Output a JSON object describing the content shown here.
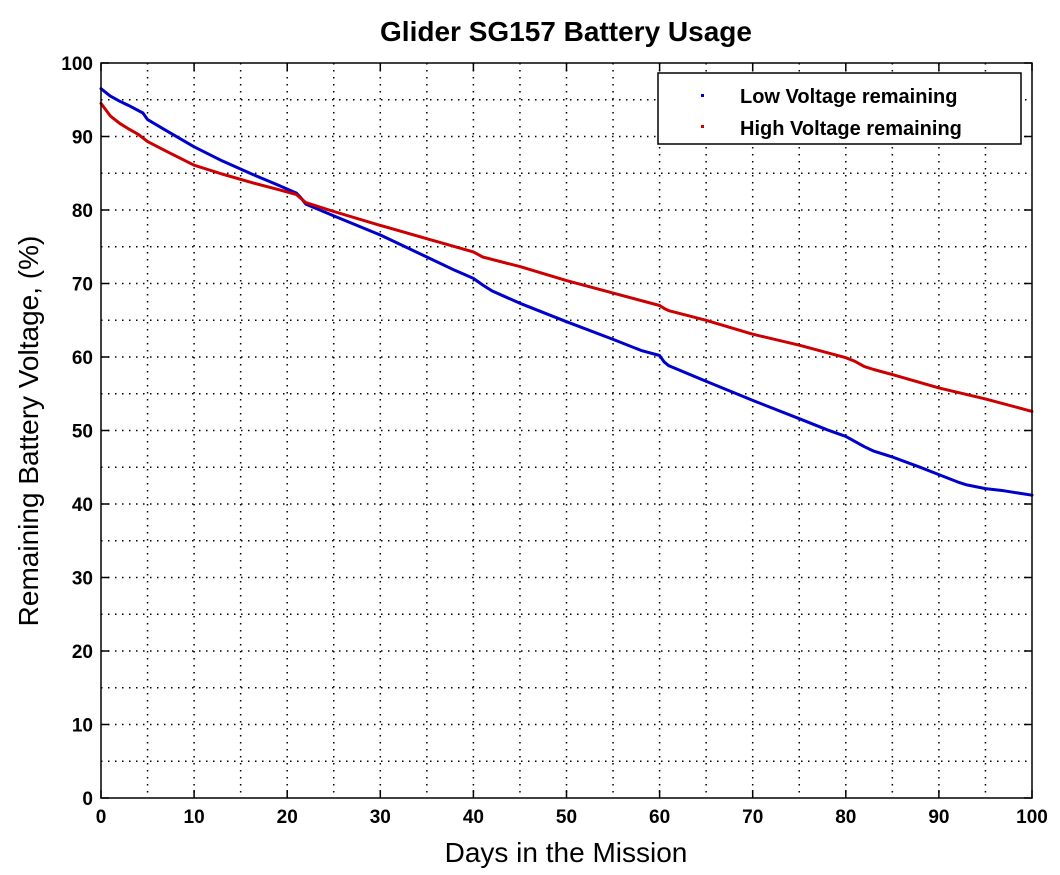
{
  "chart_data": {
    "type": "line",
    "title": "Glider SG157 Battery Usage",
    "xlabel": "Days in the Mission",
    "ylabel": "Remaining Battery Voltage, (%)",
    "xlim": [
      0,
      100
    ],
    "ylim": [
      0,
      100
    ],
    "xticks": [
      "0",
      "10",
      "20",
      "30",
      "40",
      "50",
      "60",
      "70",
      "80",
      "90",
      "100"
    ],
    "yticks": [
      "0",
      "10",
      "20",
      "30",
      "40",
      "50",
      "60",
      "70",
      "80",
      "90",
      "100"
    ],
    "grid": true,
    "legend_position": "top-right",
    "series": [
      {
        "name": "Low Voltage remaining",
        "color": "#0000cc",
        "x": [
          0,
          1,
          2,
          3,
          4.5,
          5,
          7,
          10,
          13,
          16,
          19,
          21,
          21.5,
          22,
          25,
          30,
          35,
          38,
          40,
          41,
          42,
          45,
          50,
          55,
          58,
          60,
          60.5,
          61,
          65,
          70,
          75,
          78,
          80,
          82,
          83,
          85,
          88,
          90,
          92,
          93,
          95,
          97,
          100
        ],
        "y": [
          96.5,
          95.5,
          94.8,
          94.2,
          93.2,
          92.3,
          90.8,
          88.6,
          86.7,
          85.0,
          83.4,
          82.3,
          81.6,
          80.8,
          79.2,
          76.6,
          73.6,
          71.8,
          70.7,
          69.8,
          69.0,
          67.3,
          64.8,
          62.4,
          60.9,
          60.2,
          59.3,
          58.8,
          56.7,
          54.1,
          51.6,
          50.1,
          49.2,
          47.8,
          47.2,
          46.4,
          45.0,
          44.0,
          43.0,
          42.6,
          42.1,
          41.8,
          41.2
        ]
      },
      {
        "name": "High Voltage remaining",
        "color": "#cc0000",
        "x": [
          0,
          1,
          2,
          3,
          4,
          5,
          7,
          10,
          13,
          16,
          19,
          21,
          22,
          25,
          30,
          35,
          40,
          41,
          45,
          50,
          55,
          60,
          60.5,
          61,
          65,
          70,
          75,
          80,
          81,
          82,
          83,
          85,
          90,
          95,
          100
        ],
        "y": [
          94.5,
          92.8,
          91.8,
          91.0,
          90.3,
          89.3,
          88.0,
          86.1,
          84.9,
          83.8,
          82.8,
          82.1,
          81.0,
          79.8,
          77.9,
          76.1,
          74.3,
          73.6,
          72.3,
          70.4,
          68.7,
          67.0,
          66.6,
          66.3,
          65.0,
          63.1,
          61.6,
          59.9,
          59.4,
          58.7,
          58.3,
          57.6,
          55.8,
          54.3,
          52.6
        ]
      }
    ]
  }
}
